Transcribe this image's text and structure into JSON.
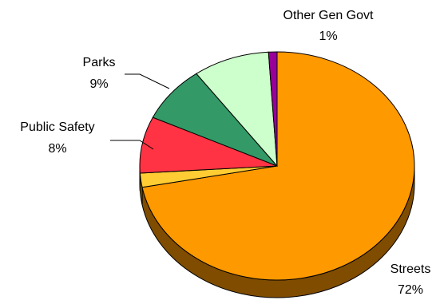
{
  "chart_data": {
    "type": "pie",
    "title": "",
    "slices": [
      {
        "label": "Streets",
        "value": 72,
        "display": "72%",
        "color": "#FF9900",
        "side_color": "#7F4C00"
      },
      {
        "label": "",
        "value": 2,
        "display": "",
        "color": "#FFCC33",
        "side_color": "#806619"
      },
      {
        "label": "Public Safety",
        "value": 8,
        "display": "8%",
        "color": "#FF3344",
        "side_color": "#801A22"
      },
      {
        "label": "",
        "value": 8,
        "display": "",
        "color": "#339966",
        "side_color": "#1A4D33"
      },
      {
        "label": "Parks",
        "value": 9,
        "display": "9%",
        "color": "#CCFFCC",
        "side_color": "#668066"
      },
      {
        "label": "Other Gen Govt",
        "value": 1,
        "display": "1%",
        "color": "#990099",
        "side_color": "#4D004D"
      }
    ],
    "legend": "none",
    "style": "3d-tilted"
  }
}
